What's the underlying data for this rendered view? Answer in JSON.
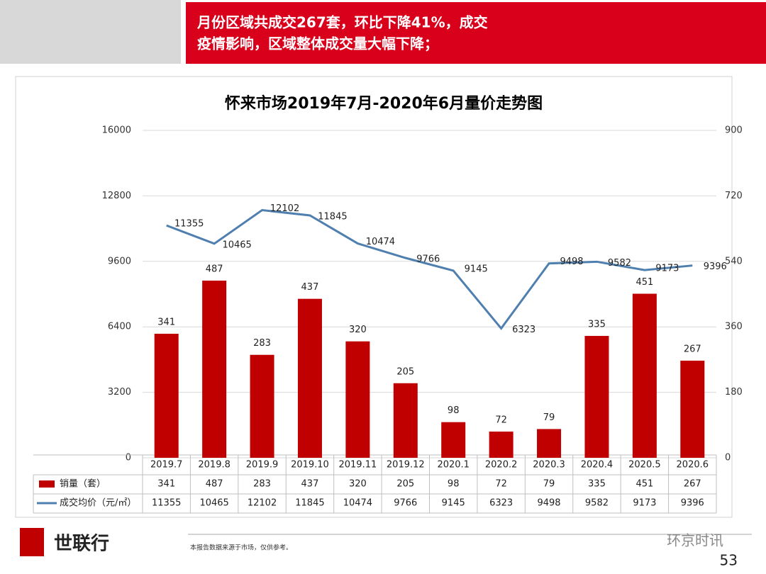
{
  "header": {
    "line1": "月份区域共成交267套，环比下降41%，成交",
    "line2": "疫情影响，区域整体成交量大幅下降；"
  },
  "chart_data": {
    "type": "combo",
    "title": "怀来市场2019年7月-2020年6月量价走势图",
    "categories": [
      "2019.7",
      "2019.8",
      "2019.9",
      "2019.10",
      "2019.11",
      "2019.12",
      "2020.1",
      "2020.2",
      "2020.3",
      "2020.4",
      "2020.5",
      "2020.6"
    ],
    "series": [
      {
        "name": "销量（套）",
        "type": "bar",
        "axis": "y2",
        "color": "#c00000",
        "values": [
          341,
          487,
          283,
          437,
          320,
          205,
          98,
          72,
          79,
          335,
          451,
          267
        ]
      },
      {
        "name": "成交均价（元/㎡）",
        "type": "line",
        "color": "#4f7fae",
        "values": [
          11355,
          10465,
          12102,
          11845,
          10474,
          9766,
          9145,
          6323,
          9498,
          9582,
          9173,
          9396
        ]
      }
    ],
    "ylim": [
      0,
      16000
    ],
    "yticks": [
      0,
      3200,
      6400,
      9600,
      12800,
      16000
    ],
    "y2lim": [
      0,
      900
    ],
    "y2ticks": [
      0,
      180,
      360,
      540,
      720,
      900
    ],
    "grid": true
  },
  "footer": {
    "brand": "世联行",
    "note": "本报告数据来源于市场，仅供参考。",
    "watermark": "环京时讯",
    "page": "53"
  }
}
